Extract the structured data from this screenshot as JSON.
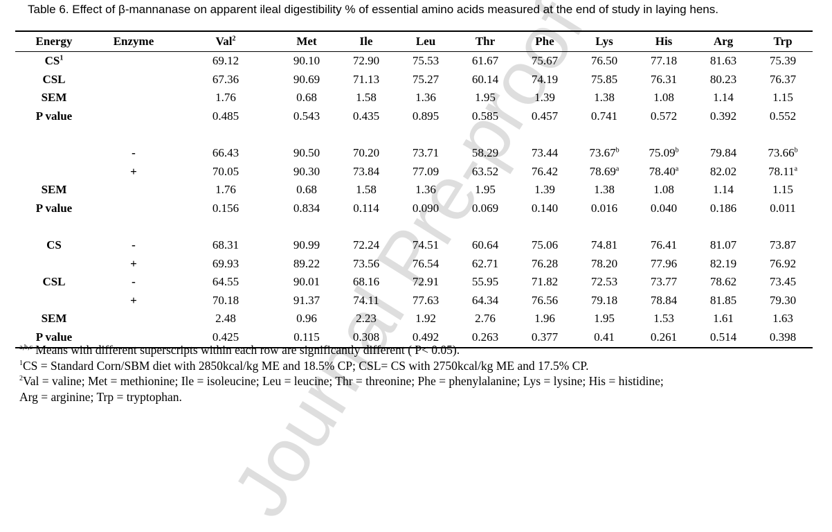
{
  "caption": "Table 6. Effect of β-mannanase on apparent ileal digestibility % of essential amino acids measured at the end of study in laying hens.",
  "watermark": "Journal Pre-proof",
  "headers": {
    "energy": "Energy",
    "enzyme": "Enzyme",
    "val": "Val",
    "val_sup": "2",
    "met": "Met",
    "ile": "Ile",
    "leu": "Leu",
    "thr": "Thr",
    "phe": "Phe",
    "lys": "Lys",
    "his": "His",
    "arg": "Arg",
    "trp": "Trp"
  },
  "rows": [
    {
      "label": "CS",
      "label_sup": "1",
      "enzyme": "",
      "vals": [
        "69.12",
        "90.10",
        "72.90",
        "75.53",
        "61.67",
        "75.67",
        "76.50",
        "77.18",
        "81.63",
        "75.39"
      ],
      "sups": [
        "",
        "",
        "",
        "",
        "",
        "",
        "",
        "",
        "",
        ""
      ]
    },
    {
      "label": "CSL",
      "label_sup": "",
      "enzyme": "",
      "vals": [
        "67.36",
        "90.69",
        "71.13",
        "75.27",
        "60.14",
        "74.19",
        "75.85",
        "76.31",
        "80.23",
        "76.37"
      ],
      "sups": [
        "",
        "",
        "",
        "",
        "",
        "",
        "",
        "",
        "",
        ""
      ]
    },
    {
      "label": "SEM",
      "label_sup": "",
      "enzyme": "",
      "vals": [
        "1.76",
        "0.68",
        "1.58",
        "1.36",
        "1.95",
        "1.39",
        "1.38",
        "1.08",
        "1.14",
        "1.15"
      ],
      "sups": [
        "",
        "",
        "",
        "",
        "",
        "",
        "",
        "",
        "",
        ""
      ]
    },
    {
      "label": "P value",
      "label_sup": "",
      "enzyme": "",
      "vals": [
        "0.485",
        "0.543",
        "0.435",
        "0.895",
        "0.585",
        "0.457",
        "0.741",
        "0.572",
        "0.392",
        "0.552"
      ],
      "sups": [
        "",
        "",
        "",
        "",
        "",
        "",
        "",
        "",
        "",
        ""
      ]
    },
    {
      "gap": true
    },
    {
      "label": "",
      "label_sup": "",
      "enzyme": "-",
      "vals": [
        "66.43",
        "90.50",
        "70.20",
        "73.71",
        "58.29",
        "73.44",
        "73.67",
        "75.09",
        "79.84",
        "73.66"
      ],
      "sups": [
        "",
        "",
        "",
        "",
        "",
        "",
        "b",
        "b",
        "",
        "b"
      ]
    },
    {
      "label": "",
      "label_sup": "",
      "enzyme": "+",
      "vals": [
        "70.05",
        "90.30",
        "73.84",
        "77.09",
        "63.52",
        "76.42",
        "78.69",
        "78.40",
        "82.02",
        "78.11"
      ],
      "sups": [
        "",
        "",
        "",
        "",
        "",
        "",
        "a",
        "a",
        "",
        "a"
      ]
    },
    {
      "label": "SEM",
      "label_sup": "",
      "enzyme": "",
      "vals": [
        "1.76",
        "0.68",
        "1.58",
        "1.36",
        "1.95",
        "1.39",
        "1.38",
        "1.08",
        "1.14",
        "1.15"
      ],
      "sups": [
        "",
        "",
        "",
        "",
        "",
        "",
        "",
        "",
        "",
        ""
      ]
    },
    {
      "label": "P value",
      "label_sup": "",
      "enzyme": "",
      "vals": [
        "0.156",
        "0.834",
        "0.114",
        "0.090",
        "0.069",
        "0.140",
        "0.016",
        "0.040",
        "0.186",
        "0.011"
      ],
      "sups": [
        "",
        "",
        "",
        "",
        "",
        "",
        "",
        "",
        "",
        ""
      ]
    },
    {
      "gap": true
    },
    {
      "label": "CS",
      "label_sup": "",
      "enzyme": "-",
      "vals": [
        "68.31",
        "90.99",
        "72.24",
        "74.51",
        "60.64",
        "75.06",
        "74.81",
        "76.41",
        "81.07",
        "73.87"
      ],
      "sups": [
        "",
        "",
        "",
        "",
        "",
        "",
        "",
        "",
        "",
        ""
      ]
    },
    {
      "label": "",
      "label_sup": "",
      "enzyme": "+",
      "vals": [
        "69.93",
        "89.22",
        "73.56",
        "76.54",
        "62.71",
        "76.28",
        "78.20",
        "77.96",
        "82.19",
        "76.92"
      ],
      "sups": [
        "",
        "",
        "",
        "",
        "",
        "",
        "",
        "",
        "",
        ""
      ]
    },
    {
      "label": "CSL",
      "label_sup": "",
      "enzyme": "-",
      "vals": [
        "64.55",
        "90.01",
        "68.16",
        "72.91",
        "55.95",
        "71.82",
        "72.53",
        "73.77",
        "78.62",
        "73.45"
      ],
      "sups": [
        "",
        "",
        "",
        "",
        "",
        "",
        "",
        "",
        "",
        ""
      ]
    },
    {
      "label": "",
      "label_sup": "",
      "enzyme": "+",
      "vals": [
        "70.18",
        "91.37",
        "74.11",
        "77.63",
        "64.34",
        "76.56",
        "79.18",
        "78.84",
        "81.85",
        "79.30"
      ],
      "sups": [
        "",
        "",
        "",
        "",
        "",
        "",
        "",
        "",
        "",
        ""
      ]
    },
    {
      "label": "SEM",
      "label_sup": "",
      "enzyme": "",
      "vals": [
        "2.48",
        "0.96",
        "2.23",
        "1.92",
        "2.76",
        "1.96",
        "1.95",
        "1.53",
        "1.61",
        "1.63"
      ],
      "sups": [
        "",
        "",
        "",
        "",
        "",
        "",
        "",
        "",
        "",
        ""
      ]
    },
    {
      "label": "P value",
      "label_sup": "",
      "enzyme": "",
      "vals": [
        "0.425",
        "0.115",
        "0.308",
        "0.492",
        "0.263",
        "0.377",
        "0.41",
        "0.261",
        "0.514",
        "0.398"
      ],
      "sups": [
        "",
        "",
        "",
        "",
        "",
        "",
        "",
        "",
        "",
        ""
      ]
    }
  ],
  "footnotes": {
    "note1_sup": "a,b,c",
    "note1": " Means with different superscripts within each row are significantly different ( P< 0.05).",
    "note2_sup": "1",
    "note2": "CS = Standard Corn/SBM diet with 2850kcal/kg ME and 18.5% CP; CSL= CS with 2750kcal/kg ME and 17.5% CP.",
    "note3_sup": "2",
    "note3": "Val = valine; Met = methionine; Ile = isoleucine; Leu = leucine; Thr = threonine; Phe = phenylalanine; Lys = lysine; His = histidine;",
    "note4": "Arg = arginine; Trp = tryptophan."
  }
}
